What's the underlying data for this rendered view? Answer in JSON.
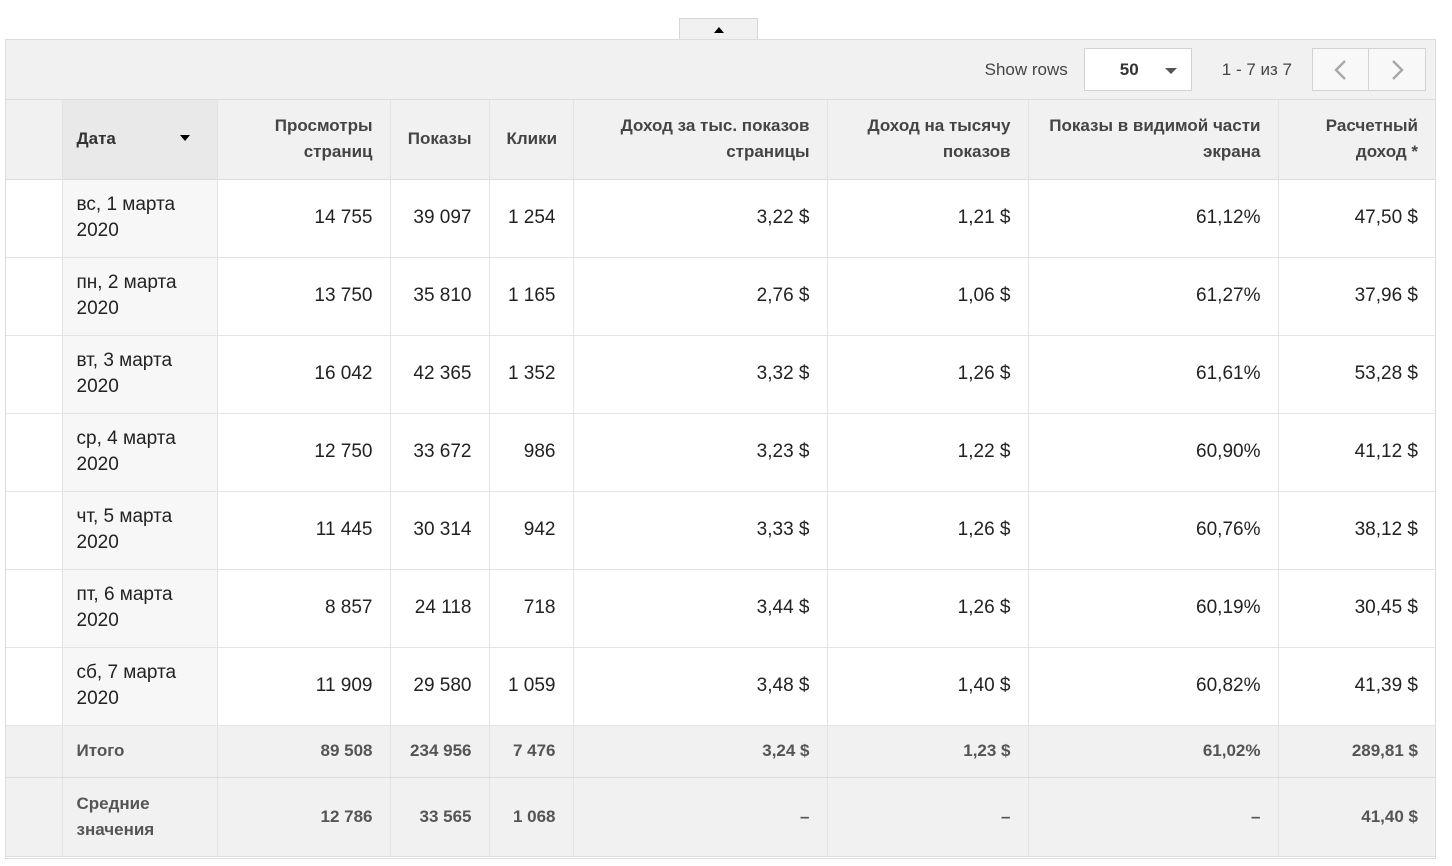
{
  "toolbar": {
    "show_rows_label": "Show rows",
    "rows_value": "50",
    "range_text": "1 - 7 из 7",
    "prev_icon": "chevron-left-icon",
    "next_icon": "chevron-right-icon"
  },
  "table": {
    "headers": {
      "date": "Дата",
      "pageviews": "Просмотры страниц",
      "impressions": "Показы",
      "clicks": "Клики",
      "page_rpm": "Доход за тыс. показов страницы",
      "impression_rpm": "Доход на тысячу показов",
      "active_view": "Показы в видимой части экрана",
      "estimated_earnings": "Расчетный доход *"
    },
    "rows": [
      {
        "date": "вс, 1 марта 2020",
        "pageviews": "14 755",
        "impressions": "39 097",
        "clicks": "1 254",
        "page_rpm": "3,22 $",
        "impression_rpm": "1,21 $",
        "active_view": "61,12%",
        "estimated_earnings": "47,50 $"
      },
      {
        "date": "пн, 2 марта 2020",
        "pageviews": "13 750",
        "impressions": "35 810",
        "clicks": "1 165",
        "page_rpm": "2,76 $",
        "impression_rpm": "1,06 $",
        "active_view": "61,27%",
        "estimated_earnings": "37,96 $"
      },
      {
        "date": "вт, 3 марта 2020",
        "pageviews": "16 042",
        "impressions": "42 365",
        "clicks": "1 352",
        "page_rpm": "3,32 $",
        "impression_rpm": "1,26 $",
        "active_view": "61,61%",
        "estimated_earnings": "53,28 $"
      },
      {
        "date": "ср, 4 марта 2020",
        "pageviews": "12 750",
        "impressions": "33 672",
        "clicks": "986",
        "page_rpm": "3,23 $",
        "impression_rpm": "1,22 $",
        "active_view": "60,90%",
        "estimated_earnings": "41,12 $"
      },
      {
        "date": "чт, 5 марта 2020",
        "pageviews": "11 445",
        "impressions": "30 314",
        "clicks": "942",
        "page_rpm": "3,33 $",
        "impression_rpm": "1,26 $",
        "active_view": "60,76%",
        "estimated_earnings": "38,12 $"
      },
      {
        "date": "пт, 6 марта 2020",
        "pageviews": "8 857",
        "impressions": "24 118",
        "clicks": "718",
        "page_rpm": "3,44 $",
        "impression_rpm": "1,26 $",
        "active_view": "60,19%",
        "estimated_earnings": "30,45 $"
      },
      {
        "date": "сб, 7 марта 2020",
        "pageviews": "11 909",
        "impressions": "29 580",
        "clicks": "1 059",
        "page_rpm": "3,48 $",
        "impression_rpm": "1,40 $",
        "active_view": "60,82%",
        "estimated_earnings": "41,39 $"
      }
    ],
    "total": {
      "label": "Итого",
      "pageviews": "89 508",
      "impressions": "234 956",
      "clicks": "7 476",
      "page_rpm": "3,24 $",
      "impression_rpm": "1,23 $",
      "active_view": "61,02%",
      "estimated_earnings": "289,81 $"
    },
    "average": {
      "label": "Средние значения",
      "pageviews": "12 786",
      "impressions": "33 565",
      "clicks": "1 068",
      "page_rpm": "–",
      "impression_rpm": "–",
      "active_view": "–",
      "estimated_earnings": "41,40 $"
    }
  }
}
